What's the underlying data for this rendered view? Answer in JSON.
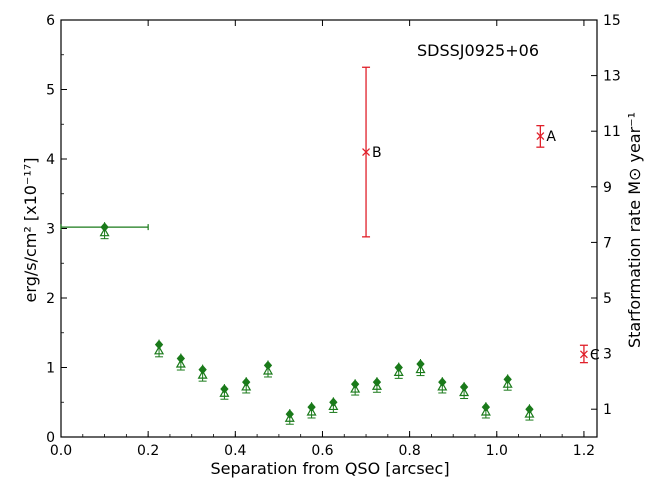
{
  "chart_data": {
    "type": "scatter",
    "annotation_title": "SDSSJ0925+06",
    "xlabel": "Separation from QSO [arcsec]",
    "ylabel": "erg/s/cm² [x10⁻¹⁷]",
    "y2label": "Starformation rate M⊙ year⁻¹",
    "xlim": [
      0.0,
      1.23
    ],
    "ylim": [
      0,
      6
    ],
    "xticks": [
      "0.0",
      "0.2",
      "0.4",
      "0.6",
      "0.8",
      "1.0",
      "1.2"
    ],
    "yticks": [
      "0",
      "1",
      "2",
      "3",
      "4",
      "5",
      "6"
    ],
    "y2ticks": [
      {
        "label": "1",
        "value": 0.4
      },
      {
        "label": "3",
        "value": 1.2
      },
      {
        "label": "5",
        "value": 2.0
      },
      {
        "label": "7",
        "value": 2.8
      },
      {
        "label": "9",
        "value": 3.6
      },
      {
        "label": "11",
        "value": 4.4
      },
      {
        "label": "13",
        "value": 5.2
      },
      {
        "label": "15",
        "value": 6.0
      }
    ],
    "grid": false,
    "series": [
      {
        "color": "#1a7a1a",
        "marker": "diamond+triangle",
        "points": [
          {
            "x": 0.1,
            "y": 3.02,
            "y2": 2.94,
            "xerr": [
              0.1,
              0.2
            ]
          },
          {
            "x": 0.225,
            "y": 1.33,
            "y2": 1.24
          },
          {
            "x": 0.275,
            "y": 1.13,
            "y2": 1.05
          },
          {
            "x": 0.325,
            "y": 0.97,
            "y2": 0.89
          },
          {
            "x": 0.375,
            "y": 0.69,
            "y2": 0.63
          },
          {
            "x": 0.425,
            "y": 0.79,
            "y2": 0.72
          },
          {
            "x": 0.475,
            "y": 1.03,
            "y2": 0.95
          },
          {
            "x": 0.525,
            "y": 0.33,
            "y2": 0.27
          },
          {
            "x": 0.575,
            "y": 0.43,
            "y2": 0.36
          },
          {
            "x": 0.625,
            "y": 0.5,
            "y2": 0.44
          },
          {
            "x": 0.675,
            "y": 0.76,
            "y2": 0.69
          },
          {
            "x": 0.725,
            "y": 0.79,
            "y2": 0.73
          },
          {
            "x": 0.775,
            "y": 1.0,
            "y2": 0.93
          },
          {
            "x": 0.825,
            "y": 1.05,
            "y2": 0.97
          },
          {
            "x": 0.875,
            "y": 0.79,
            "y2": 0.72
          },
          {
            "x": 0.925,
            "y": 0.72,
            "y2": 0.64
          },
          {
            "x": 0.975,
            "y": 0.43,
            "y2": 0.36
          },
          {
            "x": 1.025,
            "y": 0.83,
            "y2": 0.76
          },
          {
            "x": 1.075,
            "y": 0.4,
            "y2": 0.33
          }
        ]
      },
      {
        "color": "#e0202a",
        "marker": "x",
        "points": [
          {
            "label": "A",
            "x": 1.1,
            "y": 4.33,
            "ylow": 4.17,
            "yhigh": 4.48
          },
          {
            "label": "B",
            "x": 0.7,
            "y": 4.1,
            "ylow": 2.88,
            "yhigh": 5.32
          },
          {
            "label": "C",
            "x": 1.2,
            "y": 1.19,
            "ylow": 1.07,
            "yhigh": 1.32
          }
        ]
      }
    ]
  }
}
